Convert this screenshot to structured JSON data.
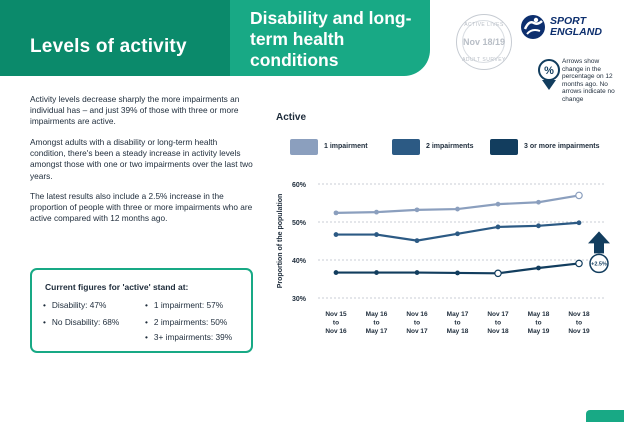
{
  "header": {
    "left_title": "Levels of activity",
    "right_title": "Disability and long-term health conditions",
    "stamp_top": "ACTIVE LIVES",
    "stamp_text": "Nov 18/19",
    "stamp_bottom": "ADULT SURVEY",
    "logo_line1": "SPORT",
    "logo_line2": "ENGLAND",
    "arrow_badge": "%",
    "arrow_note": "Arrows show change in the percentage on 12 months ago. No arrows indicate no change"
  },
  "body": {
    "p1": "Activity levels decrease sharply the more impairments an individual has – and just 39% of those with three or more impairments are active.",
    "p2": "Amongst adults with a disability or long-term health condition, there's been a steady increase in activity levels amongst those with one or two impairments over the last two years.",
    "p3": "The latest results also include a 2.5% increase in the proportion of people with three or more impairments who are active compared with 12 months ago."
  },
  "figures": {
    "title": "Current figures for 'active' stand at:",
    "items": [
      "Disability: 47%",
      "No Disability: 68%",
      "1 impairment: 57%",
      "2 impairments: 50%",
      "3+ impairments: 39%"
    ]
  },
  "colors": {
    "dark_green": "#0b8a6b",
    "light_green": "#18a985",
    "series1": "#8b9fbe",
    "series2": "#2c5a84",
    "series3": "#123d5e"
  },
  "chart_data": {
    "type": "line",
    "title": "Active",
    "ylabel": "Proportion of the population",
    "xlabel": "",
    "ylim": [
      30,
      60
    ],
    "yticks": [
      "60%",
      "50%",
      "40%",
      "30%"
    ],
    "categories": [
      [
        "Nov 15",
        "to",
        "Nov 16"
      ],
      [
        "May 16",
        "to",
        "May 17"
      ],
      [
        "Nov 16",
        "to",
        "Nov 17"
      ],
      [
        "May 17",
        "to",
        "May 18"
      ],
      [
        "Nov 17",
        "to",
        "Nov 18"
      ],
      [
        "May 18",
        "to",
        "May 19"
      ],
      [
        "Nov 18",
        "to",
        "Nov 19"
      ]
    ],
    "series": [
      {
        "name": "1 impairment",
        "values": [
          52.4,
          52.6,
          53.2,
          53.4,
          54.7,
          55.2,
          57.0
        ]
      },
      {
        "name": "2 impairments",
        "values": [
          46.7,
          46.7,
          45.1,
          46.9,
          48.7,
          49.0,
          49.8
        ]
      },
      {
        "name": "3 or more impairments",
        "values": [
          36.7,
          36.7,
          36.7,
          36.6,
          36.5,
          37.9,
          39.1
        ]
      }
    ],
    "annotation": "+2.5%"
  }
}
